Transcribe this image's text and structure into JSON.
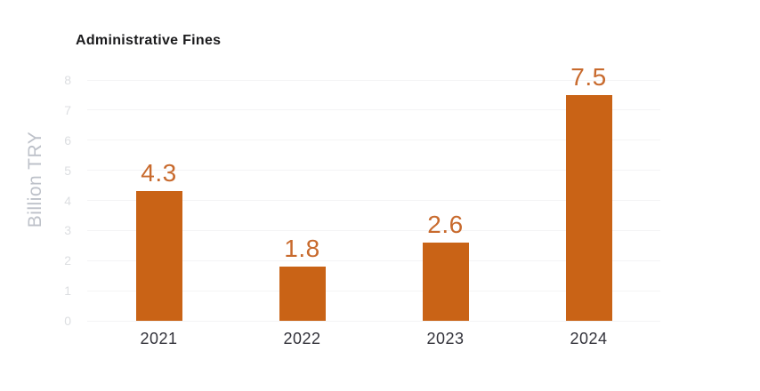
{
  "title": "Administrative Fines",
  "y_axis_label": "Billion TRY",
  "colors": {
    "background": "#ffffff",
    "bar": "#c96316",
    "value_label": "#c86a2d",
    "gridline": "#f4f4f5",
    "y_tick": "#dcdee1",
    "y_axis_label": "#bdc1c9",
    "x_tick": "#32323a",
    "title": "#1b1b1d"
  },
  "chart_data": {
    "type": "bar",
    "title": "Administrative Fines",
    "categories": [
      "2021",
      "2022",
      "2023",
      "2024"
    ],
    "values": [
      4.3,
      1.8,
      2.6,
      7.5
    ],
    "value_labels": [
      "4.3",
      "1.8",
      "2.6",
      "7.5"
    ],
    "xlabel": "",
    "ylabel": "Billion TRY",
    "ylim": [
      0,
      8
    ],
    "yticks": [
      0,
      1,
      2,
      3,
      4,
      5,
      6,
      7,
      8
    ],
    "grid": true,
    "legend": false,
    "bar_color": "#c96316",
    "data_label_position": "above-bar"
  }
}
